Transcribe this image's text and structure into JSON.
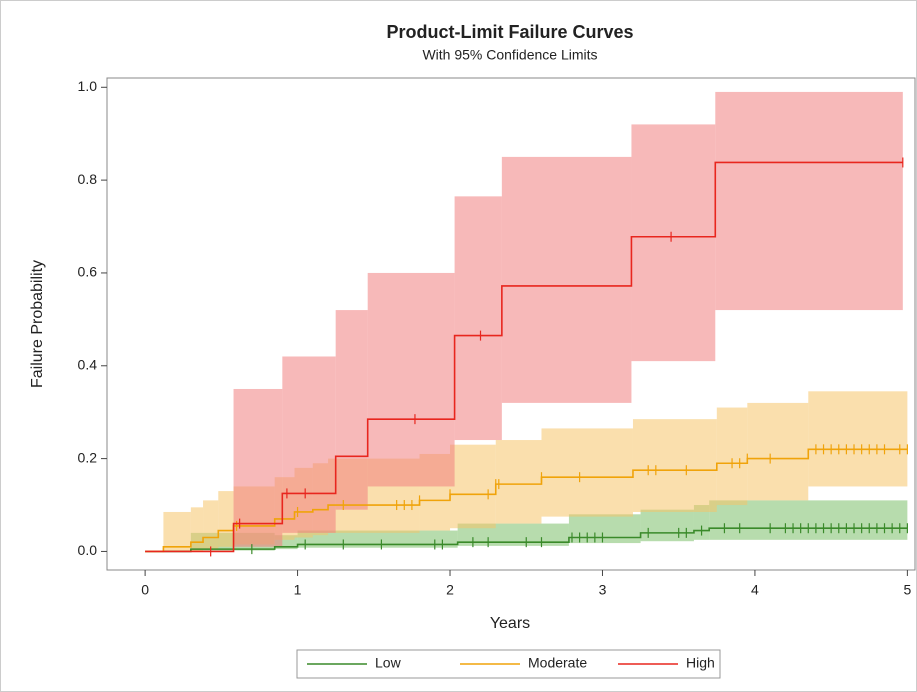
{
  "chart_data": {
    "type": "step",
    "title": "Product-Limit Failure Curves",
    "subtitle": "With 95% Confidence Limits",
    "x_label": "Years",
    "y_label": "Failure Probability",
    "xlim": [
      -0.25,
      5.05
    ],
    "ylim": [
      -0.04,
      1.02
    ],
    "xticks": [
      0,
      1,
      2,
      3,
      4,
      5
    ],
    "yticks": [
      {
        "value": 0,
        "label": "0.0"
      },
      {
        "value": 0.2,
        "label": "0.2"
      },
      {
        "value": 0.4,
        "label": "0.4"
      },
      {
        "value": 0.6,
        "label": "0.6"
      },
      {
        "value": 0.8,
        "label": "0.8"
      },
      {
        "value": 1,
        "label": "1.0"
      }
    ],
    "legend": "bottom",
    "series": [
      {
        "name": "Low",
        "color": "#3a8a2a",
        "band_color": "#7cc06a",
        "x": [
          0,
          0.3,
          0.85,
          1.0,
          2.05,
          2.78,
          3.25,
          3.6,
          3.7
        ],
        "values": [
          0,
          0.005,
          0.01,
          0.015,
          0.02,
          0.03,
          0.04,
          0.045,
          0.05
        ],
        "lower": [
          0,
          0.002,
          0.005,
          0.008,
          0.012,
          0.018,
          0.022,
          0.025,
          0.025
        ],
        "upper": [
          0,
          0.04,
          0.035,
          0.045,
          0.06,
          0.08,
          0.09,
          0.1,
          0.11
        ],
        "censored": [
          0.7,
          1.05,
          1.3,
          1.55,
          1.9,
          1.95,
          2.15,
          2.25,
          2.5,
          2.6,
          2.8,
          2.85,
          2.9,
          2.95,
          3.0,
          3.3,
          3.5,
          3.55,
          3.65,
          3.8,
          3.9,
          4.1,
          4.2,
          4.25,
          4.3,
          4.35,
          4.4,
          4.45,
          4.5,
          4.55,
          4.6,
          4.65,
          4.7,
          4.75,
          4.8,
          4.85,
          4.9,
          4.95,
          5.0
        ]
      },
      {
        "name": "Moderate",
        "color": "#f0a30a",
        "band_color": "#f5c46a",
        "x": [
          0,
          0.12,
          0.3,
          0.38,
          0.48,
          0.58,
          0.85,
          0.98,
          1.1,
          1.2,
          1.8,
          2.0,
          2.3,
          2.6,
          3.2,
          3.75,
          3.95,
          4.35
        ],
        "values": [
          0,
          0.01,
          0.02,
          0.03,
          0.045,
          0.055,
          0.07,
          0.085,
          0.09,
          0.1,
          0.11,
          0.123,
          0.145,
          0.16,
          0.175,
          0.19,
          0.2,
          0.22
        ],
        "lower": [
          0,
          0,
          0,
          0.005,
          0.01,
          0.015,
          0.025,
          0.03,
          0.035,
          0.04,
          0.045,
          0.05,
          0.06,
          0.075,
          0.085,
          0.1,
          0.11,
          0.14
        ],
        "upper": [
          0,
          0.085,
          0.095,
          0.11,
          0.13,
          0.14,
          0.16,
          0.18,
          0.19,
          0.2,
          0.21,
          0.23,
          0.24,
          0.265,
          0.285,
          0.31,
          0.32,
          0.345
        ],
        "censored": [
          0.6,
          0.9,
          1.0,
          1.3,
          1.65,
          1.7,
          1.75,
          1.8,
          2.0,
          2.25,
          2.3,
          2.32,
          2.6,
          2.85,
          3.3,
          3.35,
          3.55,
          3.85,
          3.9,
          3.95,
          4.1,
          4.4,
          4.45,
          4.5,
          4.55,
          4.6,
          4.65,
          4.7,
          4.75,
          4.8,
          4.85,
          4.95,
          5.0
        ]
      },
      {
        "name": "High",
        "color": "#e8261e",
        "band_color": "#f08080",
        "x": [
          0,
          0.58,
          0.9,
          1.25,
          1.46,
          2.03,
          2.34,
          3.19,
          3.74
        ],
        "values": [
          0,
          0.06,
          0.125,
          0.205,
          0.285,
          0.465,
          0.572,
          0.678,
          0.838
        ],
        "lower": [
          0,
          0.01,
          0.04,
          0.09,
          0.14,
          0.24,
          0.32,
          0.41,
          0.52
        ],
        "upper": [
          0,
          0.35,
          0.42,
          0.52,
          0.6,
          0.765,
          0.85,
          0.92,
          0.99
        ],
        "censored": [
          0.43,
          0.62,
          0.93,
          1.05,
          1.77,
          2.2,
          3.45,
          4.97
        ]
      }
    ]
  }
}
